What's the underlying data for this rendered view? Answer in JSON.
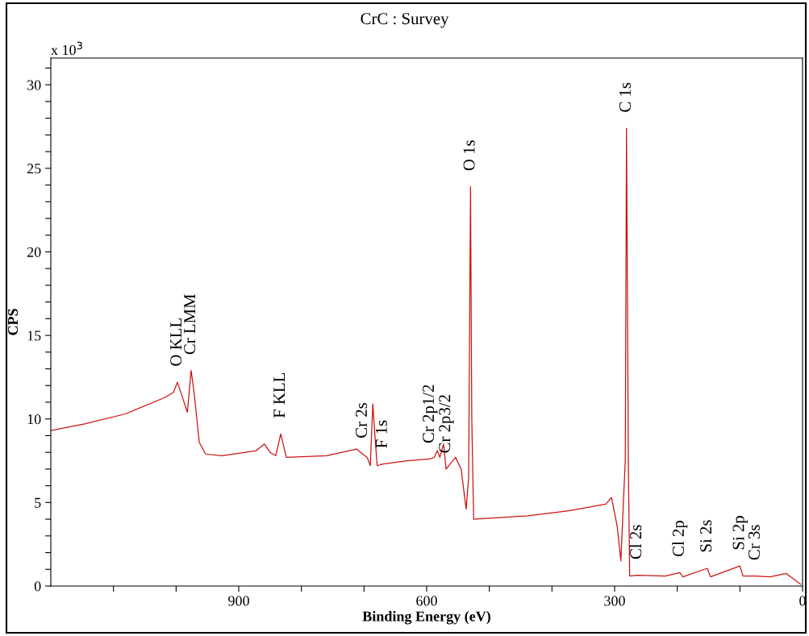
{
  "chart_data": {
    "type": "line",
    "title": "CrC : Survey",
    "xlabel": "Binding Energy (eV)",
    "ylabel": "CPS",
    "x": [
      1200,
      1146,
      1081,
      1017,
      1004,
      998,
      989,
      982,
      976,
      971,
      963,
      953,
      927,
      872,
      859,
      850,
      841,
      833,
      824,
      760,
      712,
      702,
      695,
      690,
      686,
      682,
      679,
      670,
      631,
      595,
      588,
      583,
      579,
      573,
      569,
      554,
      545,
      537,
      533,
      530,
      528,
      525,
      438,
      373,
      314,
      305,
      296,
      290,
      286,
      283,
      281,
      278,
      276,
      264,
      219,
      196,
      191,
      152,
      147,
      100,
      95,
      75,
      52,
      26,
      3
    ],
    "series": [
      {
        "color": "#cc1111",
        "values": [
          9.3,
          9.7,
          10.3,
          11.3,
          11.6,
          12.2,
          11.2,
          10.4,
          12.9,
          11.5,
          8.6,
          7.9,
          7.8,
          8.1,
          8.5,
          8.0,
          7.8,
          9.1,
          7.7,
          7.8,
          8.2,
          7.9,
          7.7,
          7.2,
          10.9,
          8.7,
          7.2,
          7.3,
          7.5,
          7.6,
          7.7,
          8.1,
          7.7,
          8.5,
          7.0,
          7.7,
          7.0,
          4.6,
          6.5,
          23.9,
          10.0,
          4.0,
          4.2,
          4.5,
          4.9,
          5.3,
          3.6,
          1.5,
          5.0,
          7.5,
          27.4,
          7.1,
          0.6,
          0.65,
          0.6,
          0.8,
          0.55,
          1.06,
          0.55,
          1.2,
          0.6,
          0.6,
          0.55,
          0.75,
          0.1
        ]
      }
    ],
    "xlim": [
      1200,
      0
    ],
    "ylim": [
      0,
      31.6
    ],
    "xticks": [
      {
        "value": 1100,
        "label": null
      },
      {
        "value": 1000,
        "label": null
      },
      900,
      {
        "value": 800,
        "label": null
      },
      {
        "value": 700,
        "label": null
      },
      600,
      {
        "value": 500,
        "label": null
      },
      {
        "value": 400,
        "label": null
      },
      300,
      {
        "value": 200,
        "label": null
      },
      {
        "value": 100,
        "label": null
      },
      0
    ],
    "yticks": [
      0,
      {
        "value": 1,
        "label": null
      },
      {
        "value": 2,
        "label": null
      },
      {
        "value": 3,
        "label": null
      },
      {
        "value": 4,
        "label": null
      },
      5,
      {
        "value": 6,
        "label": null
      },
      {
        "value": 7,
        "label": null
      },
      {
        "value": 8,
        "label": null
      },
      {
        "value": 9,
        "label": null
      },
      10,
      {
        "value": 11,
        "label": null
      },
      {
        "value": 12,
        "label": null
      },
      {
        "value": 13,
        "label": null
      },
      {
        "value": 14,
        "label": null
      },
      15,
      {
        "value": 16,
        "label": null
      },
      {
        "value": 17,
        "label": null
      },
      {
        "value": 18,
        "label": null
      },
      {
        "value": 19,
        "label": null
      },
      20,
      {
        "value": 21,
        "label": null
      },
      {
        "value": 22,
        "label": null
      },
      {
        "value": 23,
        "label": null
      },
      {
        "value": 24,
        "label": null
      },
      25,
      {
        "value": 26,
        "label": null
      },
      {
        "value": 27,
        "label": null
      },
      {
        "value": 28,
        "label": null
      },
      {
        "value": 29,
        "label": null
      },
      30,
      {
        "value": 31,
        "label": null
      }
    ],
    "grid": false,
    "marker": "none",
    "line_style": "solid",
    "annotations": [
      "x 10$^{3}$",
      {
        "text": "O KLL",
        "x": 998,
        "y": 12.2
      },
      {
        "text": "Cr LMM",
        "x": 976,
        "y": 12.9
      },
      {
        "text": "F KLL",
        "x": 833,
        "y": 9.1
      },
      {
        "text": "Cr 2s",
        "x": 702,
        "y": 7.9
      },
      {
        "text": "F 1s",
        "x": 670,
        "y": 7.3
      },
      {
        "text": "Cr 2p1/2",
        "x": 595,
        "y": 7.6
      },
      {
        "text": "Cr 2p3/2",
        "x": 569,
        "y": 7.0
      },
      {
        "text": "O 1s",
        "x": 530,
        "y": 23.9
      },
      {
        "text": "C 1s",
        "x": 281,
        "y": 27.4
      },
      {
        "text": "Cl 2s",
        "x": 264,
        "y": 0.65
      },
      {
        "text": "Cl 2p",
        "x": 196,
        "y": 0.8
      },
      {
        "text": "Si 2s",
        "x": 152,
        "y": 1.06
      },
      {
        "text": "Si 2p",
        "x": 100,
        "y": 1.2
      },
      {
        "text": "Cr 3s",
        "x": 75,
        "y": 0.6
      }
    ]
  }
}
